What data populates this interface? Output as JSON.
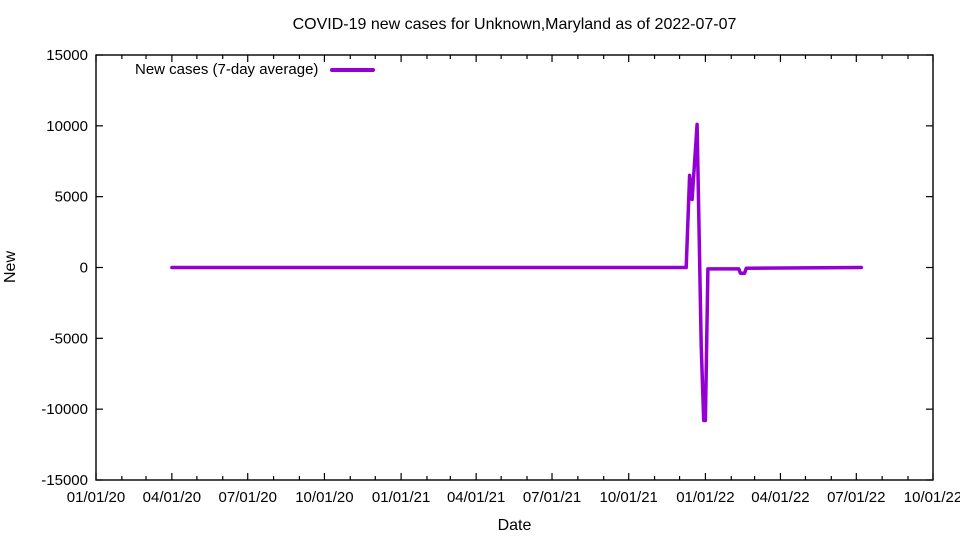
{
  "chart_data": {
    "type": "line",
    "title": "COVID-19 new cases for Unknown,Maryland as of 2022-07-07",
    "xlabel": "Date",
    "ylabel": "New",
    "legend": {
      "label": "New cases (7-day average)",
      "position": "top-left-inside"
    },
    "line_color": "#9400d3",
    "axis_color": "#000000",
    "background": "#ffffff",
    "grid": false,
    "xlim": [
      "2020-01-01",
      "2022-10-01"
    ],
    "ylim": [
      -15000,
      15000
    ],
    "ytick_step": 5000,
    "ytick_labels": [
      "-15000",
      "-10000",
      "-5000",
      "0",
      "5000",
      "10000",
      "15000"
    ],
    "xticks": [
      {
        "date": "2020-01-01",
        "label": "01/01/20"
      },
      {
        "date": "2020-04-01",
        "label": "04/01/20"
      },
      {
        "date": "2020-07-01",
        "label": "07/01/20"
      },
      {
        "date": "2020-10-01",
        "label": "10/01/20"
      },
      {
        "date": "2021-01-01",
        "label": "01/01/21"
      },
      {
        "date": "2021-04-01",
        "label": "04/01/21"
      },
      {
        "date": "2021-07-01",
        "label": "07/01/21"
      },
      {
        "date": "2021-10-01",
        "label": "10/01/21"
      },
      {
        "date": "2022-01-01",
        "label": "01/01/22"
      },
      {
        "date": "2022-04-01",
        "label": "04/01/22"
      },
      {
        "date": "2022-07-01",
        "label": "07/01/22"
      },
      {
        "date": "2022-10-01",
        "label": "10/01/22"
      }
    ],
    "minor_xticks": "monthly",
    "series": [
      {
        "name": "New cases (7-day average)",
        "points": [
          [
            "2020-04-01",
            0
          ],
          [
            "2021-12-09",
            0
          ],
          [
            "2021-12-13",
            6500
          ],
          [
            "2021-12-16",
            4800
          ],
          [
            "2021-12-22",
            10100
          ],
          [
            "2021-12-27",
            -5500
          ],
          [
            "2021-12-30",
            -10800
          ],
          [
            "2022-01-01",
            -10800
          ],
          [
            "2022-01-04",
            -100
          ],
          [
            "2022-02-10",
            -100
          ],
          [
            "2022-02-12",
            -400
          ],
          [
            "2022-02-17",
            -400
          ],
          [
            "2022-02-19",
            -50
          ],
          [
            "2022-07-07",
            0
          ]
        ]
      }
    ]
  }
}
